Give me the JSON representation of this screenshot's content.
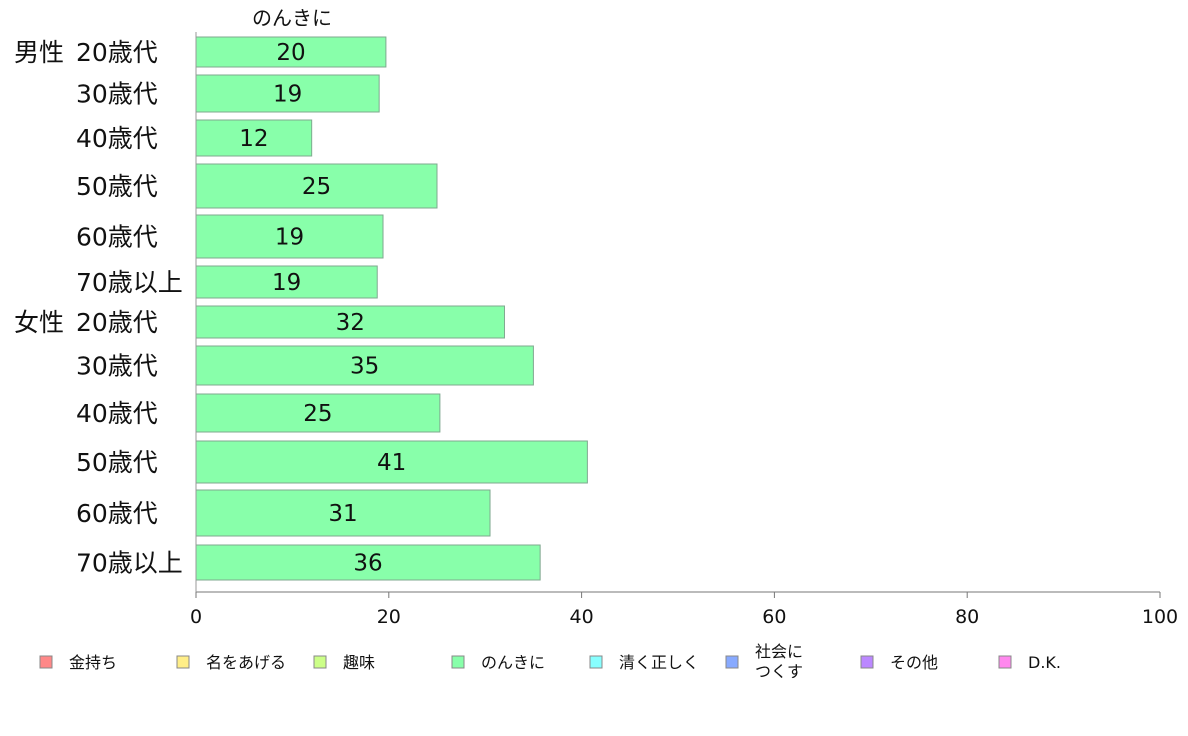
{
  "chart_data": {
    "type": "bar",
    "orientation": "horizontal",
    "title": "",
    "column_title": "のんきに",
    "xlim": [
      0,
      100
    ],
    "x_ticks": [
      0,
      20,
      40,
      60,
      80,
      100
    ],
    "groups": [
      {
        "label": "男性",
        "rows": [
          0,
          1,
          2,
          3,
          4,
          5
        ]
      },
      {
        "label": "女性",
        "rows": [
          6,
          7,
          8,
          9,
          10,
          11
        ]
      }
    ],
    "categories": [
      "20歳代",
      "30歳代",
      "40歳代",
      "50歳代",
      "60歳代",
      "70歳以上",
      "20歳代",
      "30歳代",
      "40歳代",
      "50歳代",
      "60歳代",
      "70歳以上"
    ],
    "series": [
      {
        "name": "のんきに",
        "color": "#88ffaa",
        "values": [
          19.7,
          19,
          12,
          25,
          19.4,
          18.8,
          32,
          35,
          25.3,
          40.6,
          30.5,
          35.7
        ],
        "labels": [
          "20",
          "19",
          "12",
          "25",
          "19",
          "19",
          "32",
          "35",
          "25",
          "41",
          "31",
          "36"
        ]
      }
    ],
    "legend": {
      "position": "bottom",
      "items": [
        {
          "label": "金持ち",
          "color": "#ff8888"
        },
        {
          "label": "名をあげる",
          "color": "#ffee88"
        },
        {
          "label": "趣味",
          "color": "#ccff88"
        },
        {
          "label": "のんきに",
          "color": "#88ffaa"
        },
        {
          "label": "清く正しく",
          "color": "#88ffff"
        },
        {
          "label": "社会に\nつくす",
          "color": "#88aaff"
        },
        {
          "label": "その他",
          "color": "#bb88ff"
        },
        {
          "label": "D.K.",
          "color": "#ff88ee"
        }
      ]
    },
    "grid": false
  }
}
